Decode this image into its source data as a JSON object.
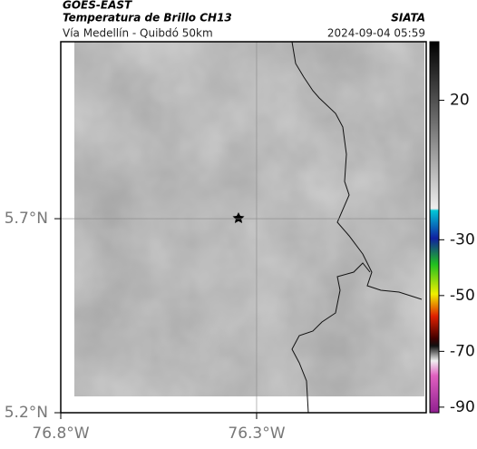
{
  "header": {
    "satellite": "GOES-EAST",
    "product": "Temperatura de Brillo CH13",
    "source": "SIATA",
    "route": "Vía Medellín - Quibdó 50km",
    "datetime": "2024-09-04 05:59"
  },
  "map": {
    "lat_lim": [
      5.2,
      6.156
    ],
    "lon_lim": [
      -76.8,
      -75.867
    ],
    "lat_ticks": [
      {
        "value": 5.7,
        "label": "5.7°N"
      },
      {
        "value": 5.2,
        "label": "5.2°N"
      }
    ],
    "lon_ticks": [
      {
        "value": -76.8,
        "label": "76.8°W"
      },
      {
        "value": -76.3,
        "label": "76.3°W"
      }
    ]
  },
  "colorbar": {
    "lim": [
      -92,
      41
    ],
    "ticks": [
      20,
      -30,
      -50,
      -70,
      -90
    ]
  }
}
